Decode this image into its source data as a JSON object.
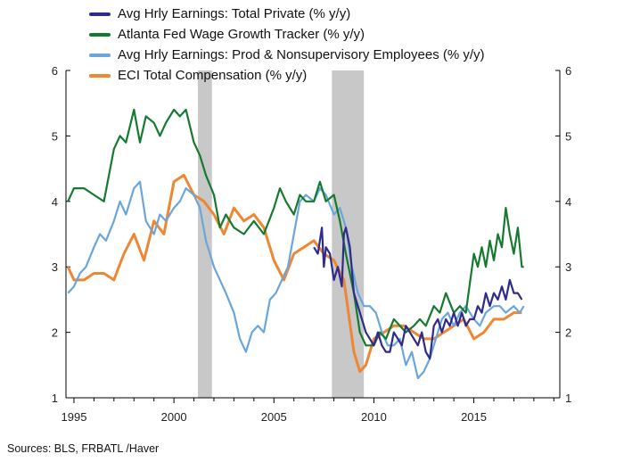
{
  "chart_data": {
    "type": "line",
    "title": "",
    "xlabel": "",
    "ylabel": "",
    "xlim": [
      1994.6,
      2019.3
    ],
    "ylim": [
      1,
      6
    ],
    "x_ticks": [
      1995,
      2000,
      2005,
      2010,
      2015
    ],
    "y_ticks": [
      1,
      2,
      3,
      4,
      5,
      6
    ],
    "y_ticks_right": [
      1,
      2,
      3,
      4,
      5,
      6
    ],
    "legend_position": "top-left",
    "recessions": [
      [
        2001.2,
        2001.9
      ],
      [
        2007.9,
        2009.5
      ]
    ],
    "recession_color": "#c8c8c8",
    "series": [
      {
        "name": "Avg Hrly Earnings: Total Private (% y/y)",
        "color": "#2e2b8a",
        "x": [
          2007.0,
          2007.2,
          2007.4,
          2007.5,
          2007.6,
          2007.8,
          2008.0,
          2008.2,
          2008.4,
          2008.5,
          2008.6,
          2008.8,
          2009.0,
          2009.2,
          2009.4,
          2009.6,
          2009.8,
          2010.0,
          2010.2,
          2010.4,
          2010.6,
          2010.8,
          2011.0,
          2011.2,
          2011.4,
          2011.6,
          2011.8,
          2012.0,
          2012.2,
          2012.4,
          2012.6,
          2012.8,
          2013.0,
          2013.2,
          2013.4,
          2013.6,
          2013.8,
          2014.0,
          2014.2,
          2014.4,
          2014.6,
          2014.8,
          2015.0,
          2015.2,
          2015.4,
          2015.6,
          2015.8,
          2016.0,
          2016.2,
          2016.4,
          2016.6,
          2016.8,
          2017.0,
          2017.2,
          2017.4
        ],
        "values": [
          3.3,
          3.2,
          3.6,
          3.0,
          3.3,
          3.2,
          2.8,
          3.0,
          2.7,
          3.5,
          3.6,
          3.3,
          2.6,
          2.4,
          2.2,
          2.0,
          1.9,
          1.8,
          2.0,
          1.8,
          1.7,
          1.7,
          2.0,
          1.9,
          1.8,
          2.1,
          2.0,
          1.9,
          1.8,
          2.0,
          1.7,
          1.6,
          2.1,
          2.2,
          2.0,
          2.2,
          2.1,
          2.3,
          2.1,
          2.3,
          2.1,
          2.2,
          2.2,
          2.4,
          2.3,
          2.6,
          2.4,
          2.6,
          2.5,
          2.7,
          2.5,
          2.8,
          2.6,
          2.6,
          2.5
        ]
      },
      {
        "name": "Atlanta Fed Wage Growth Tracker (% y/y)",
        "color": "#157a2e",
        "x": [
          1994.7,
          1995.0,
          1995.5,
          1996.0,
          1996.5,
          1997.0,
          1997.3,
          1997.6,
          1998.0,
          1998.3,
          1998.6,
          1999.0,
          1999.3,
          1999.6,
          2000.0,
          2000.3,
          2000.6,
          2001.0,
          2001.3,
          2001.6,
          2002.0,
          2002.3,
          2002.6,
          2003.0,
          2003.5,
          2004.0,
          2004.5,
          2005.0,
          2005.3,
          2005.6,
          2006.0,
          2006.3,
          2006.6,
          2007.0,
          2007.3,
          2007.6,
          2008.0,
          2008.3,
          2008.6,
          2009.0,
          2009.3,
          2009.6,
          2010.0,
          2010.3,
          2010.6,
          2011.0,
          2011.3,
          2011.6,
          2012.0,
          2012.3,
          2012.6,
          2013.0,
          2013.3,
          2013.6,
          2014.0,
          2014.3,
          2014.6,
          2015.0,
          2015.2,
          2015.4,
          2015.6,
          2015.8,
          2016.0,
          2016.2,
          2016.4,
          2016.6,
          2016.8,
          2017.0,
          2017.2,
          2017.4,
          2017.5
        ],
        "values": [
          4.0,
          4.2,
          4.2,
          4.1,
          4.0,
          4.8,
          5.0,
          4.9,
          5.4,
          4.9,
          5.3,
          5.2,
          5.0,
          5.2,
          5.4,
          5.3,
          5.4,
          4.9,
          4.7,
          4.4,
          4.1,
          3.6,
          3.8,
          3.6,
          3.5,
          3.7,
          3.5,
          3.9,
          4.2,
          4.0,
          3.8,
          4.1,
          4.0,
          4.0,
          4.3,
          4.0,
          4.1,
          3.7,
          3.2,
          2.6,
          2.0,
          1.8,
          1.8,
          2.0,
          1.9,
          2.2,
          2.1,
          2.0,
          2.1,
          2.2,
          2.1,
          2.4,
          2.3,
          2.6,
          2.3,
          2.4,
          2.3,
          3.2,
          3.0,
          3.3,
          3.0,
          3.4,
          3.1,
          3.5,
          3.3,
          3.9,
          3.5,
          3.2,
          3.6,
          3.0,
          3.0
        ]
      },
      {
        "name": "Avg Hrly Earnings: Prod & Nonsupervisory Employees (% y/y)",
        "color": "#6aa6db",
        "x": [
          1994.7,
          1995.0,
          1995.3,
          1995.6,
          1996.0,
          1996.3,
          1996.6,
          1997.0,
          1997.3,
          1997.6,
          1998.0,
          1998.3,
          1998.6,
          1999.0,
          1999.3,
          1999.6,
          2000.0,
          2000.3,
          2000.6,
          2001.0,
          2001.3,
          2001.6,
          2002.0,
          2002.3,
          2002.6,
          2003.0,
          2003.3,
          2003.6,
          2003.9,
          2004.2,
          2004.5,
          2004.8,
          2005.1,
          2005.4,
          2005.7,
          2006.0,
          2006.3,
          2006.6,
          2007.0,
          2007.3,
          2007.6,
          2008.0,
          2008.3,
          2008.6,
          2008.9,
          2009.2,
          2009.5,
          2009.8,
          2010.1,
          2010.4,
          2010.7,
          2011.0,
          2011.3,
          2011.6,
          2011.9,
          2012.2,
          2012.5,
          2012.8,
          2013.1,
          2013.4,
          2013.7,
          2014.0,
          2014.3,
          2014.6,
          2015.0,
          2015.3,
          2015.6,
          2016.0,
          2016.3,
          2016.6,
          2017.0,
          2017.3,
          2017.5
        ],
        "values": [
          2.6,
          2.7,
          2.9,
          3.0,
          3.3,
          3.5,
          3.4,
          3.7,
          4.0,
          3.8,
          4.2,
          4.3,
          3.7,
          3.5,
          3.8,
          3.7,
          3.9,
          4.0,
          4.2,
          4.1,
          3.9,
          3.4,
          3.0,
          2.8,
          2.6,
          2.3,
          1.9,
          1.7,
          2.0,
          2.1,
          2.0,
          2.5,
          2.6,
          2.8,
          3.0,
          3.5,
          4.0,
          4.1,
          4.0,
          4.2,
          4.1,
          3.8,
          3.9,
          3.6,
          3.0,
          2.6,
          2.4,
          2.4,
          2.3,
          2.0,
          1.8,
          1.8,
          1.9,
          1.5,
          1.7,
          1.3,
          1.4,
          1.6,
          1.9,
          2.2,
          2.3,
          2.1,
          2.3,
          2.4,
          2.2,
          2.1,
          2.3,
          2.4,
          2.4,
          2.3,
          2.4,
          2.3,
          2.4
        ]
      },
      {
        "name": "ECI Total Compensation (% y/y)",
        "color": "#ef8632",
        "x": [
          1994.7,
          1995.0,
          1995.5,
          1996.0,
          1996.5,
          1997.0,
          1997.5,
          1998.0,
          1998.5,
          1999.0,
          1999.5,
          2000.0,
          2000.5,
          2001.0,
          2001.5,
          2002.0,
          2002.5,
          2003.0,
          2003.5,
          2004.0,
          2004.5,
          2005.0,
          2005.5,
          2006.0,
          2006.5,
          2007.0,
          2007.5,
          2008.0,
          2008.5,
          2009.0,
          2009.3,
          2009.6,
          2010.0,
          2010.5,
          2011.0,
          2011.5,
          2012.0,
          2012.5,
          2013.0,
          2013.5,
          2014.0,
          2014.5,
          2015.0,
          2015.5,
          2016.0,
          2016.5,
          2017.0,
          2017.4
        ],
        "values": [
          3.0,
          2.8,
          2.8,
          2.9,
          2.9,
          2.8,
          3.2,
          3.5,
          3.1,
          3.7,
          3.5,
          4.3,
          4.4,
          4.1,
          4.0,
          3.8,
          3.5,
          3.9,
          3.7,
          3.8,
          3.6,
          3.1,
          2.8,
          3.2,
          3.3,
          3.4,
          3.2,
          3.1,
          2.8,
          1.7,
          1.4,
          1.5,
          1.9,
          2.0,
          2.1,
          2.1,
          2.0,
          1.9,
          1.9,
          2.0,
          2.1,
          2.2,
          1.9,
          2.0,
          2.2,
          2.2,
          2.3,
          2.3
        ]
      }
    ]
  },
  "footer": {
    "source": "Sources:  BLS, FRBATL /Haver"
  }
}
